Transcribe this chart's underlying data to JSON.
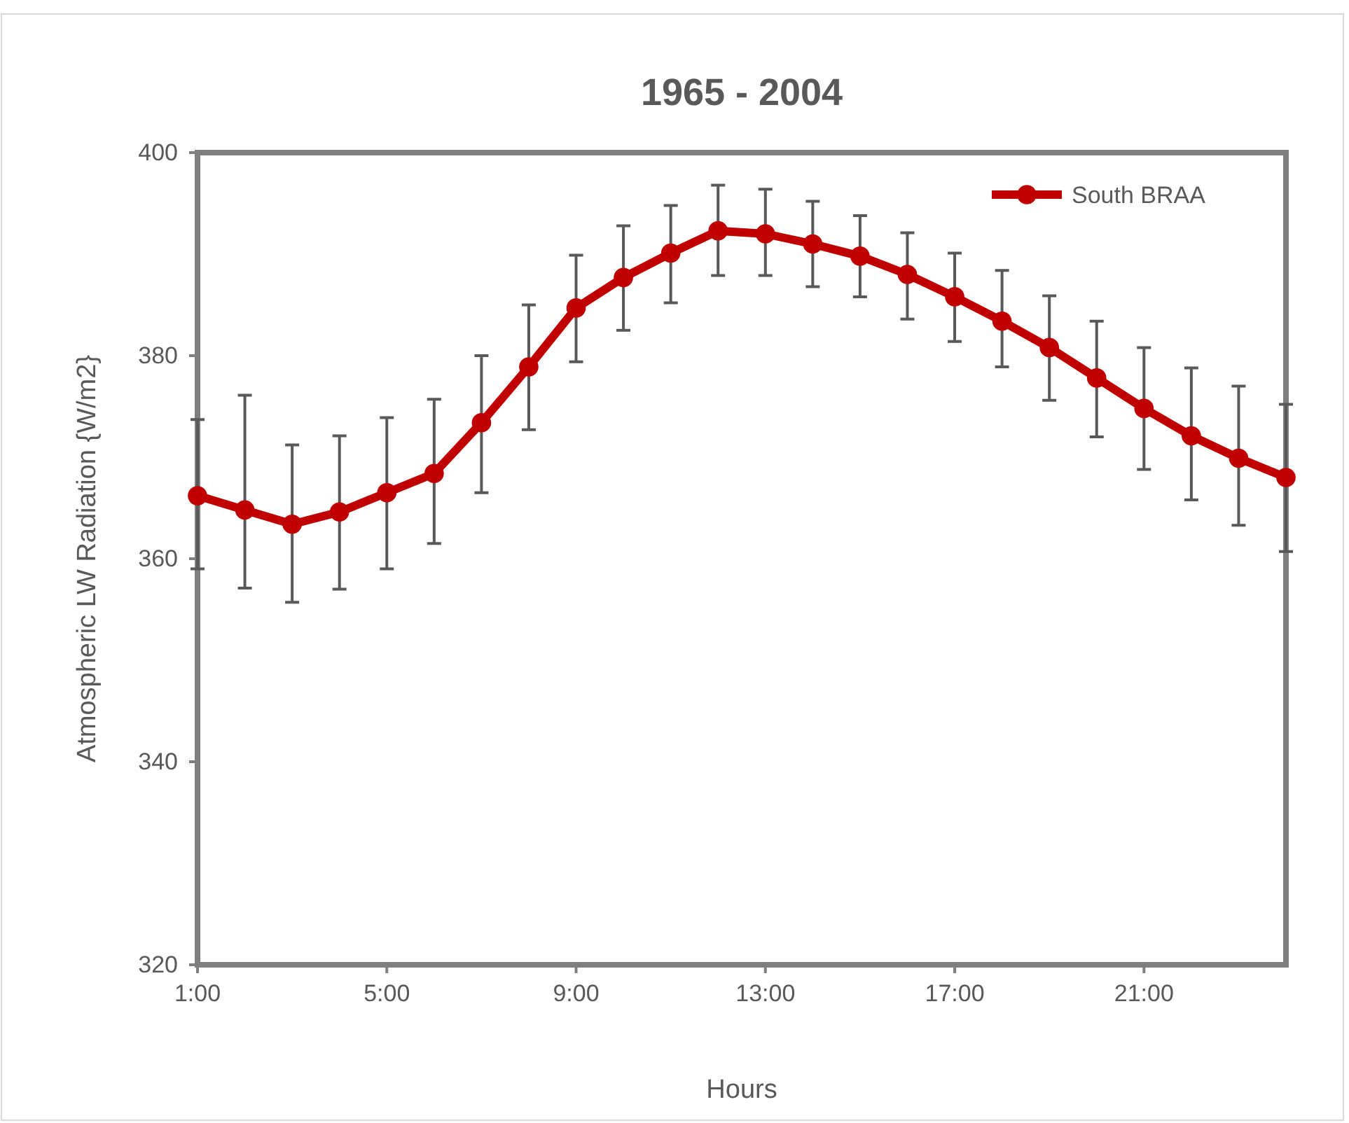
{
  "chart_data": {
    "type": "line",
    "title": "1965 - 2004",
    "xlabel": "Hours",
    "ylabel": "Atmospheric LW Radiation {W/m2}",
    "x": [
      1,
      2,
      3,
      4,
      5,
      6,
      7,
      8,
      9,
      10,
      11,
      12,
      13,
      14,
      15,
      16,
      17,
      18,
      19,
      20,
      21,
      22,
      23,
      24
    ],
    "series": [
      {
        "name": "South BRAA",
        "color": "#c00000",
        "values": [
          366.2,
          364.8,
          363.4,
          364.6,
          366.5,
          368.4,
          373.4,
          378.9,
          384.7,
          387.7,
          390.1,
          392.3,
          392.0,
          391.0,
          389.8,
          388.0,
          385.8,
          383.4,
          380.8,
          377.8,
          374.8,
          372.1,
          369.9,
          368.0
        ],
        "errors": [
          [
            359.0,
            373.7
          ],
          [
            357.1,
            376.1
          ],
          [
            355.7,
            371.2
          ],
          [
            357.0,
            372.1
          ],
          [
            359.0,
            373.9
          ],
          [
            361.5,
            375.7
          ],
          [
            366.5,
            380.0
          ],
          [
            372.7,
            385.0
          ],
          [
            379.4,
            389.9
          ],
          [
            382.5,
            392.8
          ],
          [
            385.2,
            394.8
          ],
          [
            387.9,
            396.8
          ],
          [
            387.9,
            396.4
          ],
          [
            386.8,
            395.2
          ],
          [
            385.8,
            393.8
          ],
          [
            383.6,
            392.1
          ],
          [
            381.4,
            390.1
          ],
          [
            378.9,
            388.4
          ],
          [
            375.6,
            385.9
          ],
          [
            372.0,
            383.4
          ],
          [
            368.8,
            380.8
          ],
          [
            365.8,
            378.8
          ],
          [
            363.3,
            377.0
          ],
          [
            360.7,
            375.2
          ]
        ]
      }
    ],
    "xlim": [
      1,
      24
    ],
    "xticks": [
      {
        "value": 1,
        "label": "1:00"
      },
      {
        "value": 5,
        "label": "5:00"
      },
      {
        "value": 9,
        "label": "9:00"
      },
      {
        "value": 13,
        "label": "13:00"
      },
      {
        "value": 17,
        "label": "17:00"
      },
      {
        "value": 21,
        "label": "21:00"
      }
    ],
    "ylim": [
      320,
      400
    ],
    "yticks": [
      320,
      340,
      360,
      380,
      400
    ],
    "grid": false,
    "legend": "top right",
    "marker": "circle",
    "line_style": "solid"
  }
}
